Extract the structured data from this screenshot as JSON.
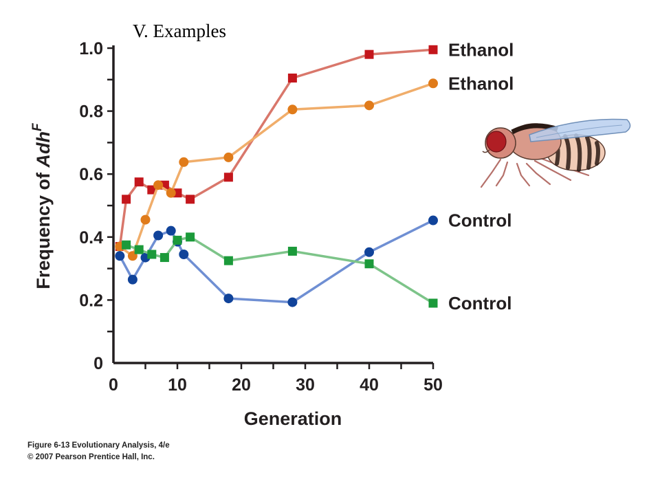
{
  "slide_title": "V. Examples",
  "caption": {
    "line1": "Figure 6-13  Evolutionary Analysis, 4/e",
    "line2": "© 2007 Pearson Prentice Hall, Inc."
  },
  "chart_data": {
    "type": "line",
    "xlabel": "Generation",
    "ylabel_prefix": "Frequency of ",
    "ylabel_gene": "Adh",
    "ylabel_sup": "F",
    "xlim": [
      0,
      50
    ],
    "ylim": [
      0,
      1.0
    ],
    "x_ticks": [
      0,
      10,
      20,
      30,
      40,
      50
    ],
    "x_tick_labels": [
      "0",
      "10",
      "20",
      "30",
      "40",
      "50"
    ],
    "y_ticks": [
      0,
      0.2,
      0.4,
      0.6,
      0.8,
      1.0
    ],
    "y_tick_labels": [
      "0",
      "0.2",
      "0.4",
      "0.6",
      "0.8",
      "1.0"
    ],
    "grid": false,
    "legend": "right, at series end",
    "series": [
      {
        "name": "Ethanol",
        "marker": "square",
        "color": "#c4161c",
        "line_color": "#d9776b",
        "x": [
          1,
          2,
          4,
          6,
          8,
          10,
          12,
          18,
          28,
          40,
          50
        ],
        "y": [
          0.37,
          0.52,
          0.575,
          0.55,
          0.565,
          0.54,
          0.52,
          0.59,
          0.905,
          0.98,
          0.995
        ]
      },
      {
        "name": "Ethanol",
        "marker": "circle",
        "color": "#e07b1a",
        "line_color": "#f0ad6a",
        "x": [
          1,
          3,
          5,
          7,
          9,
          11,
          18,
          28,
          40,
          50
        ],
        "y": [
          0.37,
          0.34,
          0.455,
          0.565,
          0.54,
          0.638,
          0.653,
          0.805,
          0.818,
          0.888
        ]
      },
      {
        "name": "Control",
        "marker": "circle",
        "color": "#10439a",
        "line_color": "#6f8fd3",
        "x": [
          1,
          3,
          5,
          7,
          9,
          10,
          11,
          18,
          28,
          40,
          50
        ],
        "y": [
          0.34,
          0.265,
          0.335,
          0.405,
          0.42,
          0.385,
          0.345,
          0.205,
          0.193,
          0.352,
          0.453
        ]
      },
      {
        "name": "Control",
        "marker": "square",
        "color": "#1b9a3a",
        "line_color": "#7dc489",
        "x": [
          2,
          4,
          6,
          8,
          10,
          12,
          18,
          28,
          40,
          50
        ],
        "y": [
          0.375,
          0.36,
          0.345,
          0.335,
          0.39,
          0.4,
          0.325,
          0.355,
          0.315,
          0.19
        ]
      }
    ]
  },
  "illustration": "fruit-fly-icon"
}
